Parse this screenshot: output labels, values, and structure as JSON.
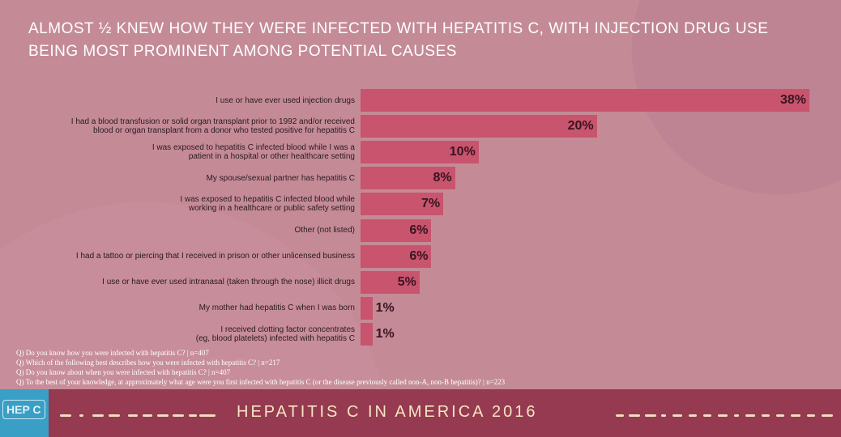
{
  "title": "Almost ½ knew how they were infected with hepatitis C, with injection drug use being most prominent among potential causes",
  "chart_data": {
    "type": "bar",
    "orientation": "horizontal",
    "categories": [
      "I use or have ever used injection drugs",
      "I had a blood transfusion or solid organ transplant prior to 1992 and/or received\nblood or organ transplant from a donor who tested positive for hepatitis C",
      "I was exposed to hepatitis C infected blood while I was a\npatient in a hospital or other healthcare setting",
      "My spouse/sexual partner has hepatitis C",
      "I was exposed to hepatitis C infected blood while\nworking in a healthcare or public safety setting",
      "Other (not listed)",
      "I had a tattoo or piercing that I received in prison or other unlicensed business",
      "I use or have ever used intranasal (taken through the nose) illicit drugs",
      "My mother had hepatitis C when I was born",
      "I received clotting factor concentrates\n(eg, blood platelets) infected with hepatitis C"
    ],
    "values": [
      38,
      20,
      10,
      8,
      7,
      6,
      6,
      5,
      1,
      1
    ],
    "data_labels": [
      "38%",
      "20%",
      "10%",
      "8%",
      "7%",
      "6%",
      "6%",
      "5%",
      "1%",
      "1%"
    ],
    "bar_color": "#c8546e"
  },
  "notes": [
    "Q) Do you know how you were infected with hepatitis C? | n=407",
    "Q) Which of the following best describes how you were infected with hepatitis C? | n=217",
    "Q) Do you know about when you were infected with hepatitis C? | n=407",
    "Q) To the best of your knowledge, at approximately what age were you first infected with hepatitis C (or the disease previously called non-A, non-B hepatitis)? | n=223"
  ],
  "footer": {
    "logo": "HEP C",
    "title": "HEPATITIS C IN AMERICA 2016"
  },
  "colors": {
    "background": "#c48b97",
    "footer": "#953a50",
    "logo": "#3a9fc5"
  }
}
